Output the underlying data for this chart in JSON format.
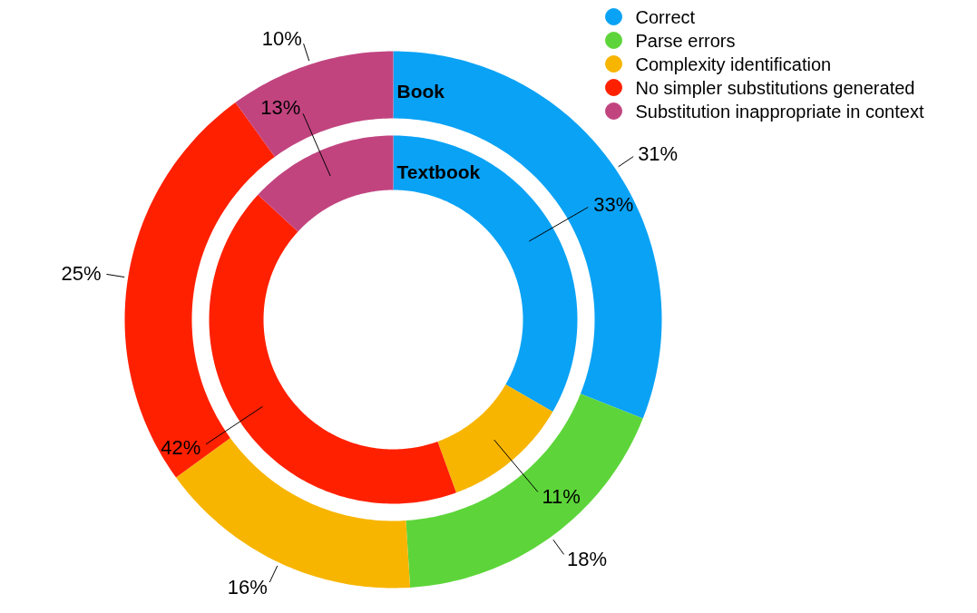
{
  "chart_data": {
    "type": "donut",
    "categories": [
      "Correct",
      "Parse errors",
      "Complexity identification",
      "No simpler substitutions generated",
      "Substitution inappropriate in context"
    ],
    "colors": [
      "#0aa2f5",
      "#5dd53a",
      "#f7b500",
      "#ff2000",
      "#c1447f"
    ],
    "series": [
      {
        "name": "Book",
        "values": [
          31,
          18,
          16,
          25,
          10
        ],
        "value_labels": [
          "31%",
          "18%",
          "16%",
          "25%",
          "10%"
        ]
      },
      {
        "name": "Textbook",
        "values": [
          33,
          0,
          11,
          42,
          13
        ],
        "value_labels": [
          "33%",
          null,
          "11%",
          "42%",
          "13%"
        ]
      }
    ],
    "legend": "top right"
  }
}
